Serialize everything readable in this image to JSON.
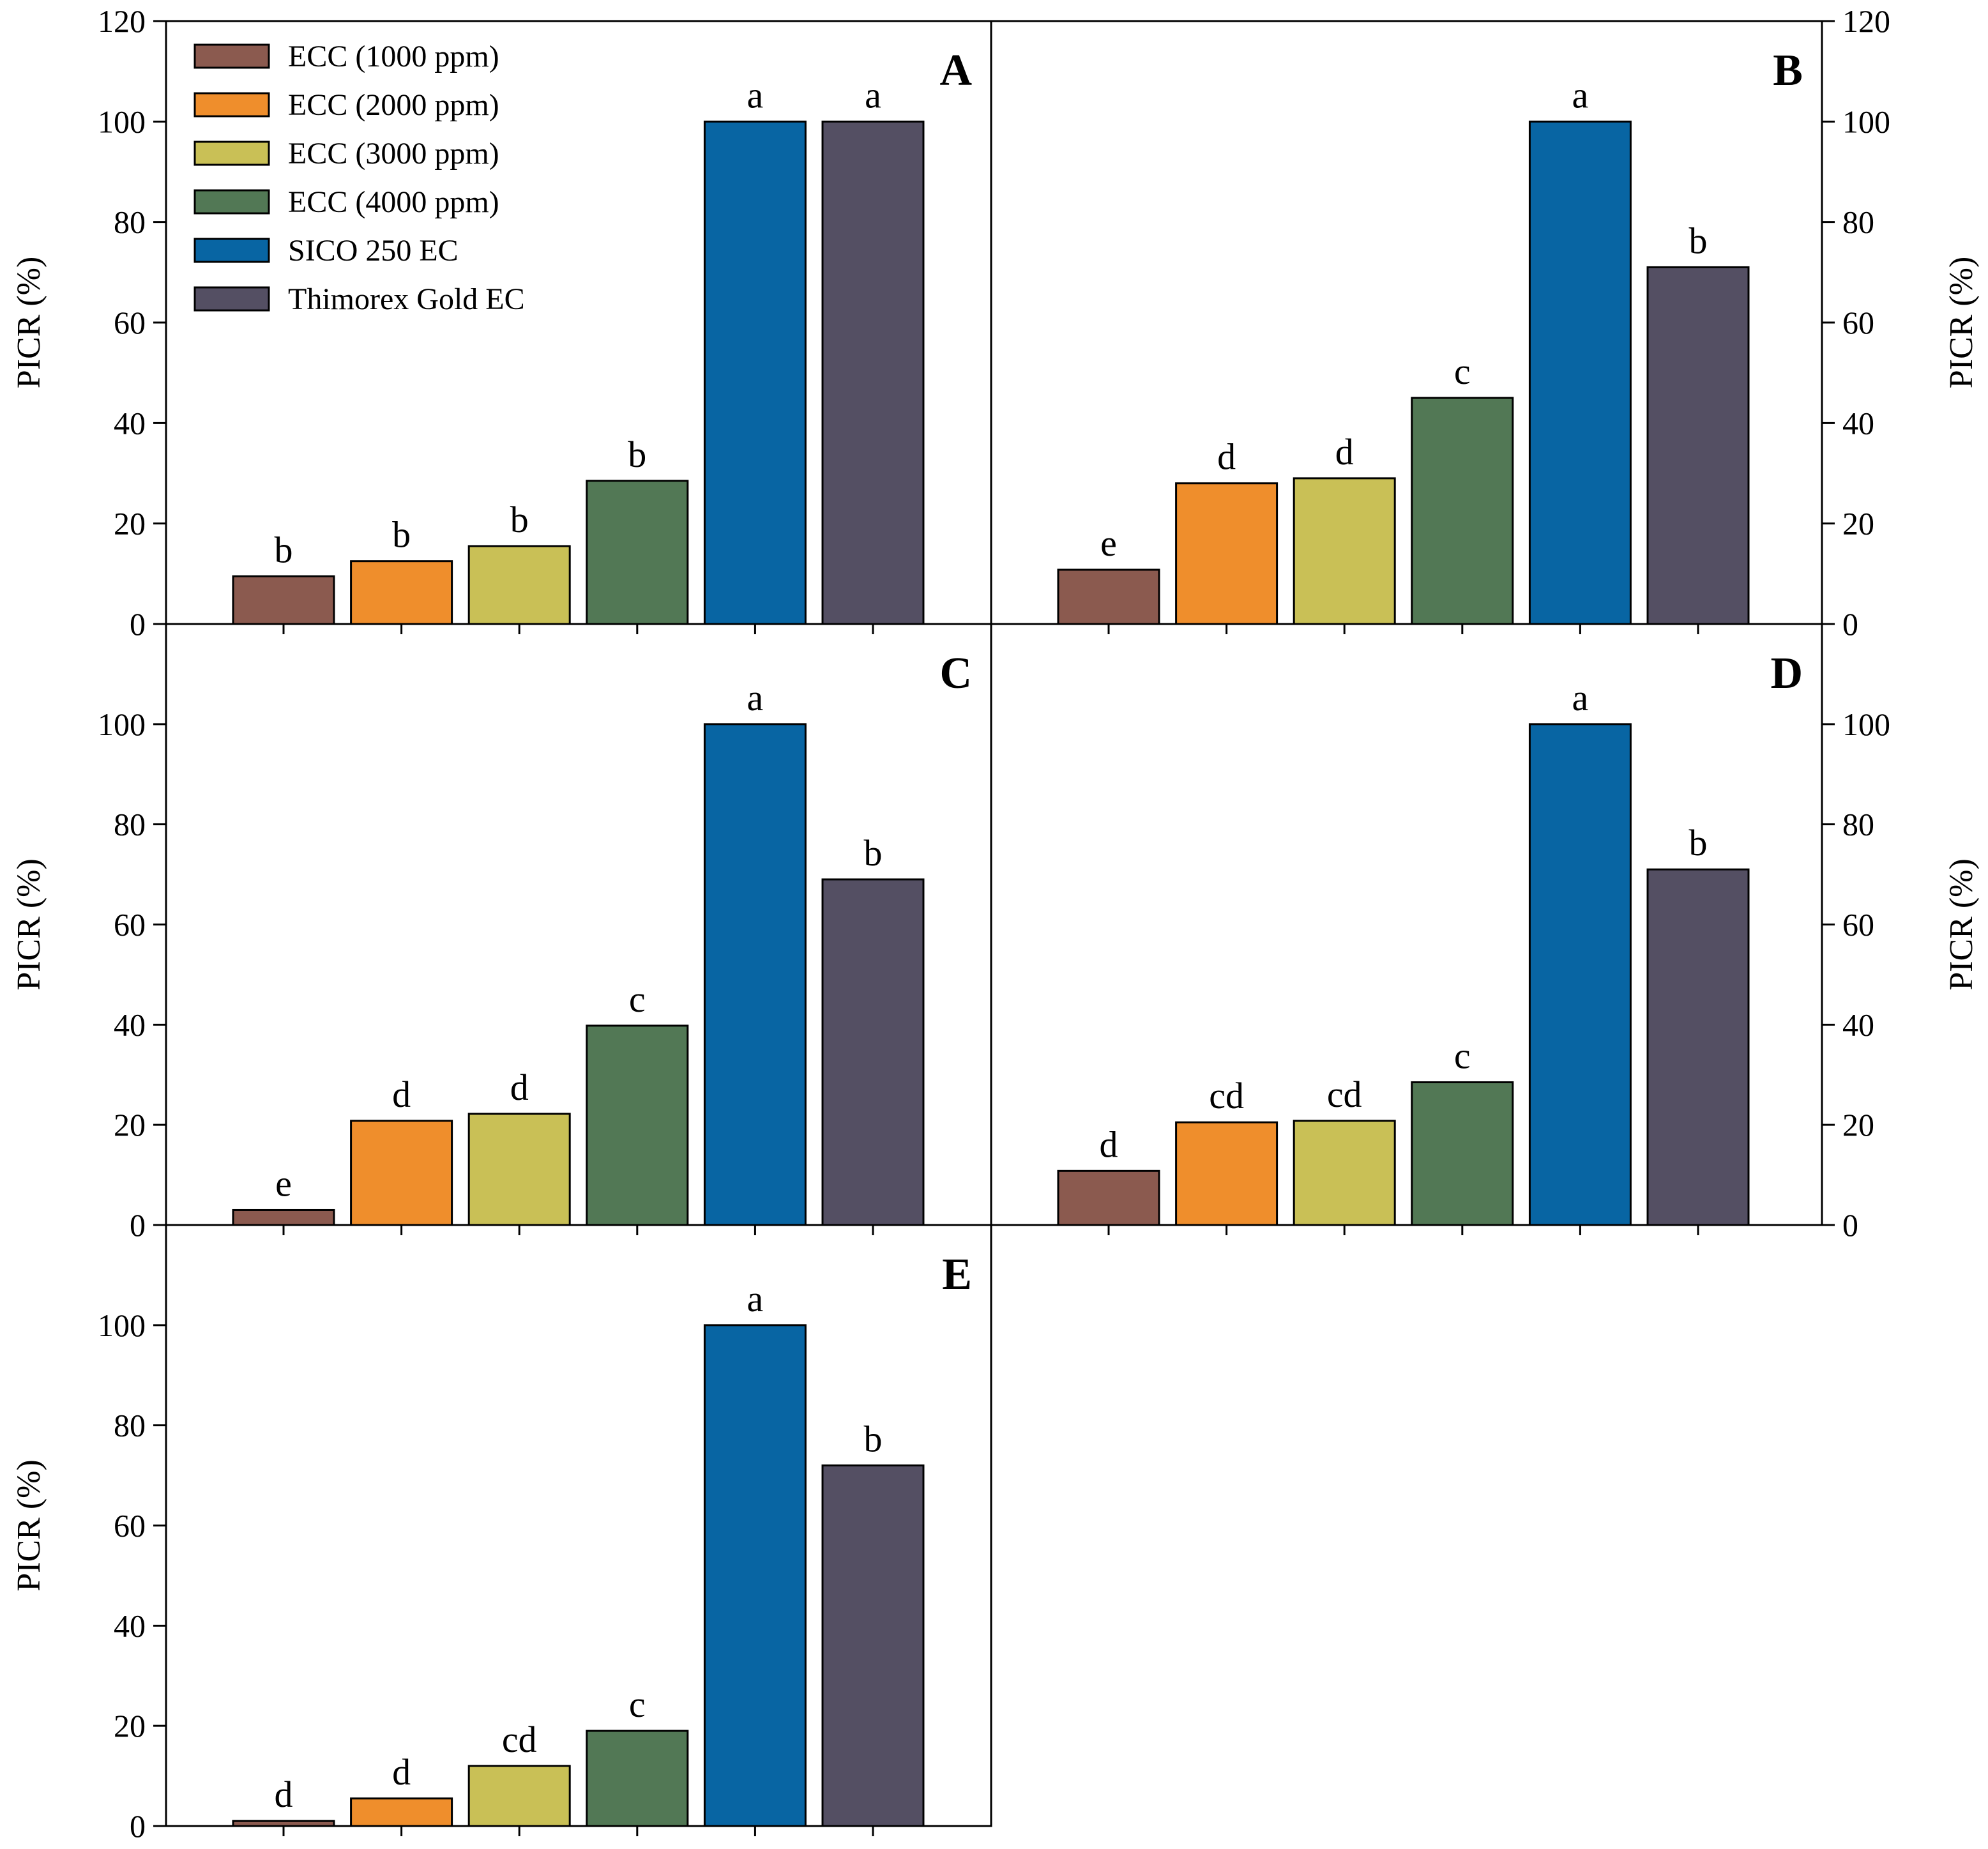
{
  "chart_data": {
    "type": "bar",
    "categories": [
      "ECC (1000 ppm)",
      "ECC (2000 ppm)",
      "ECC (3000 ppm)",
      "ECC (4000 ppm)",
      "SICO 250 EC",
      "Thimorex Gold EC"
    ],
    "colors": [
      "#8B5A4F",
      "#EF8E2C",
      "#C9C056",
      "#527855",
      "#0865A3",
      "#544F63"
    ],
    "ylabel": "PICR (%)",
    "ylim": [
      0,
      120
    ],
    "legend_position": "top-left of panel A",
    "panels": [
      {
        "letter": "A",
        "values": [
          9.5,
          12.5,
          15.5,
          28.5,
          100,
          100
        ],
        "labels": [
          "b",
          "b",
          "b",
          "b",
          "a",
          "a"
        ],
        "yticks": [
          0,
          20,
          40,
          60,
          80,
          100,
          120
        ]
      },
      {
        "letter": "B",
        "values": [
          10.8,
          28,
          29,
          45,
          100,
          71
        ],
        "labels": [
          "e",
          "d",
          "d",
          "c",
          "a",
          "b"
        ],
        "yticks": [
          0,
          20,
          40,
          60,
          80,
          100,
          120
        ]
      },
      {
        "letter": "C",
        "values": [
          3,
          20.8,
          22.2,
          39.8,
          100,
          69
        ],
        "labels": [
          "e",
          "d",
          "d",
          "c",
          "a",
          "b"
        ],
        "yticks": [
          0,
          20,
          40,
          60,
          80,
          100
        ]
      },
      {
        "letter": "D",
        "values": [
          10.8,
          20.5,
          20.8,
          28.5,
          100,
          71
        ],
        "labels": [
          "d",
          "cd",
          "cd",
          "c",
          "a",
          "b"
        ],
        "yticks": [
          0,
          20,
          40,
          60,
          80,
          100
        ]
      },
      {
        "letter": "E",
        "values": [
          1,
          5.5,
          12,
          19,
          100,
          72
        ],
        "labels": [
          "d",
          "d",
          "cd",
          "c",
          "a",
          "b"
        ],
        "yticks": [
          0,
          20,
          40,
          60,
          80,
          100
        ]
      }
    ]
  }
}
